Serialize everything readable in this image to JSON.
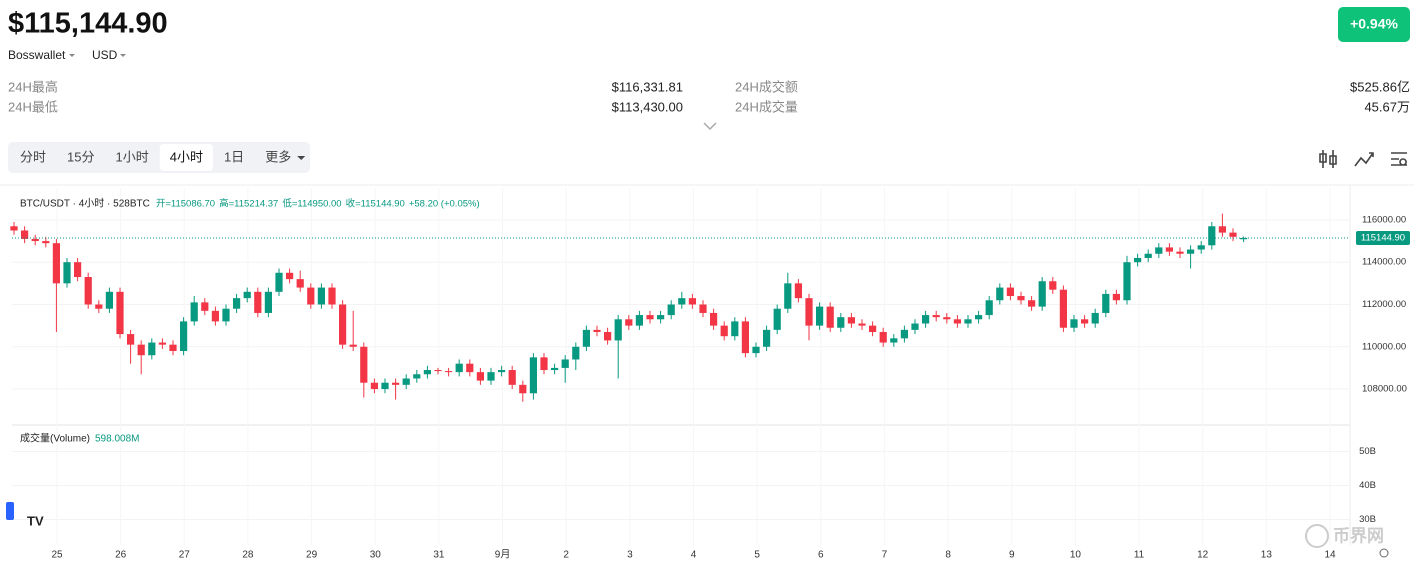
{
  "header": {
    "price": "$115,144.90",
    "exchange": "Bosswallet",
    "currency": "USD",
    "change": "+0.94%"
  },
  "stats": [
    {
      "label": "24H最高",
      "value": "$116,331.81"
    },
    {
      "label": "24H最低",
      "value": "$113,430.00"
    },
    {
      "label": "24H成交额",
      "value": "$525.86亿"
    },
    {
      "label": "24H成交量",
      "value": "45.67万"
    }
  ],
  "tabs": [
    "分时",
    "15分",
    "1小时",
    "4小时",
    "1日",
    "更多"
  ],
  "active_tab": 3,
  "chart_data": {
    "type": "candlestick",
    "legend": {
      "symbol": "BTC/USDT · 4小时 · 528BTC",
      "fields": [
        "开=115086.70",
        "高=115214.37",
        "低=114950.00",
        "收=115144.90",
        "+58.20 (+0.05%)"
      ]
    },
    "x_labels": [
      "25",
      "26",
      "27",
      "28",
      "29",
      "30",
      "31",
      "9月",
      "2",
      "3",
      "4",
      "5",
      "6",
      "7",
      "8",
      "9",
      "10",
      "11",
      "12",
      "13",
      "14"
    ],
    "up_color": "#089981",
    "down_color": "#f23645",
    "ylim": [
      106300,
      117510
    ],
    "yticks": [
      {
        "value": 116000,
        "label": "116000.00"
      },
      {
        "value": 114000,
        "label": "114000.00"
      },
      {
        "value": 112000,
        "label": "112000.00"
      },
      {
        "value": 110000,
        "label": "110000.00"
      },
      {
        "value": 108000,
        "label": "108000.00"
      }
    ],
    "last_price_label": "115144.90",
    "candles": [
      [
        115700,
        115900,
        115300,
        115500
      ],
      [
        115500,
        115700,
        114900,
        115100
      ],
      [
        115100,
        115300,
        114800,
        115000
      ],
      [
        115000,
        115200,
        114700,
        114900
      ],
      [
        114900,
        115100,
        110700,
        113000
      ],
      [
        113000,
        114200,
        112800,
        114000
      ],
      [
        114000,
        114200,
        113100,
        113300
      ],
      [
        113300,
        113500,
        111800,
        112000
      ],
      [
        112000,
        112200,
        111600,
        111800
      ],
      [
        111800,
        112800,
        111600,
        112600
      ],
      [
        112600,
        112800,
        110400,
        110600
      ],
      [
        110600,
        110800,
        109200,
        110100
      ],
      [
        110100,
        110300,
        108700,
        109600
      ],
      [
        109600,
        110400,
        109400,
        110200
      ],
      [
        110200,
        110400,
        109900,
        110100
      ],
      [
        110100,
        110300,
        109600,
        109800
      ],
      [
        109800,
        111400,
        109600,
        111200
      ],
      [
        111200,
        112400,
        111000,
        112100
      ],
      [
        112100,
        112300,
        111500,
        111700
      ],
      [
        111700,
        111900,
        111000,
        111200
      ],
      [
        111200,
        112000,
        111000,
        111800
      ],
      [
        111800,
        112500,
        111600,
        112300
      ],
      [
        112300,
        112800,
        112100,
        112600
      ],
      [
        112600,
        112800,
        111400,
        111600
      ],
      [
        111600,
        112800,
        111400,
        112600
      ],
      [
        112600,
        113700,
        112400,
        113500
      ],
      [
        113500,
        113700,
        113000,
        113200
      ],
      [
        113200,
        113600,
        112600,
        112800
      ],
      [
        112800,
        113000,
        111800,
        112000
      ],
      [
        112000,
        113000,
        111800,
        112800
      ],
      [
        112800,
        113000,
        111800,
        112000
      ],
      [
        112000,
        112200,
        109900,
        110100
      ],
      [
        110100,
        111700,
        109800,
        110000
      ],
      [
        110000,
        110200,
        107600,
        108300
      ],
      [
        108300,
        108500,
        107800,
        108000
      ],
      [
        108000,
        108500,
        107800,
        108300
      ],
      [
        108300,
        108500,
        107500,
        108200
      ],
      [
        108200,
        108700,
        108000,
        108500
      ],
      [
        108500,
        108900,
        108300,
        108700
      ],
      [
        108700,
        109100,
        108500,
        108900
      ],
      [
        108900,
        109000,
        108700,
        108850
      ],
      [
        108850,
        109000,
        108600,
        108800
      ],
      [
        108800,
        109400,
        108600,
        109200
      ],
      [
        109200,
        109400,
        108600,
        108800
      ],
      [
        108800,
        109000,
        108200,
        108400
      ],
      [
        108400,
        109000,
        108200,
        108800
      ],
      [
        108800,
        109100,
        108600,
        108900
      ],
      [
        108900,
        109100,
        108000,
        108200
      ],
      [
        108200,
        108400,
        107400,
        107800
      ],
      [
        107800,
        109700,
        107500,
        109500
      ],
      [
        109500,
        109700,
        108700,
        108900
      ],
      [
        108900,
        109200,
        108700,
        109000
      ],
      [
        109000,
        109600,
        108300,
        109400
      ],
      [
        109400,
        110200,
        108900,
        110000
      ],
      [
        110000,
        111000,
        109800,
        110800
      ],
      [
        110800,
        111000,
        110500,
        110700
      ],
      [
        110700,
        110900,
        110100,
        110300
      ],
      [
        110300,
        111500,
        108500,
        111300
      ],
      [
        111300,
        111500,
        110800,
        111000
      ],
      [
        111000,
        111700,
        110800,
        111500
      ],
      [
        111500,
        111700,
        111100,
        111300
      ],
      [
        111300,
        111700,
        111100,
        111500
      ],
      [
        111500,
        112200,
        111300,
        112000
      ],
      [
        112000,
        112600,
        111800,
        112300
      ],
      [
        112300,
        112500,
        111800,
        112000
      ],
      [
        112000,
        112200,
        111400,
        111600
      ],
      [
        111600,
        111800,
        110800,
        111000
      ],
      [
        111000,
        111200,
        110300,
        110500
      ],
      [
        110500,
        111400,
        110300,
        111200
      ],
      [
        111200,
        111400,
        109500,
        109700
      ],
      [
        109700,
        110200,
        109500,
        110000
      ],
      [
        110000,
        111000,
        109800,
        110800
      ],
      [
        110800,
        112000,
        110600,
        111800
      ],
      [
        111800,
        113500,
        111600,
        113000
      ],
      [
        113000,
        113200,
        112100,
        112300
      ],
      [
        112300,
        112500,
        110300,
        111000
      ],
      [
        111000,
        112100,
        110800,
        111900
      ],
      [
        111900,
        112100,
        110700,
        110900
      ],
      [
        110900,
        111600,
        110700,
        111400
      ],
      [
        111400,
        111600,
        110900,
        111100
      ],
      [
        111100,
        111300,
        110800,
        111000
      ],
      [
        111000,
        111200,
        110500,
        110700
      ],
      [
        110700,
        110900,
        110000,
        110200
      ],
      [
        110200,
        110600,
        110000,
        110400
      ],
      [
        110400,
        111000,
        110200,
        110800
      ],
      [
        110800,
        111300,
        110600,
        111100
      ],
      [
        111100,
        111700,
        110900,
        111500
      ],
      [
        111500,
        111700,
        111200,
        111400
      ],
      [
        111400,
        111600,
        111100,
        111300
      ],
      [
        111300,
        111500,
        110900,
        111100
      ],
      [
        111100,
        111500,
        110900,
        111300
      ],
      [
        111300,
        111700,
        111100,
        111500
      ],
      [
        111500,
        112400,
        111300,
        112200
      ],
      [
        112200,
        113000,
        112000,
        112800
      ],
      [
        112800,
        113000,
        112200,
        112400
      ],
      [
        112400,
        112600,
        112000,
        112200
      ],
      [
        112200,
        112400,
        111700,
        111900
      ],
      [
        111900,
        113300,
        111700,
        113100
      ],
      [
        113100,
        113300,
        112500,
        112700
      ],
      [
        112700,
        112900,
        110700,
        110900
      ],
      [
        110900,
        111500,
        110700,
        111300
      ],
      [
        111300,
        111500,
        110900,
        111100
      ],
      [
        111100,
        111800,
        110900,
        111600
      ],
      [
        111600,
        112700,
        111400,
        112500
      ],
      [
        112500,
        112700,
        112000,
        112200
      ],
      [
        112200,
        114300,
        112000,
        114000
      ],
      [
        114000,
        114400,
        113800,
        114200
      ],
      [
        114200,
        114600,
        114000,
        114400
      ],
      [
        114400,
        114900,
        114200,
        114700
      ],
      [
        114700,
        114900,
        114300,
        114500
      ],
      [
        114500,
        114700,
        114200,
        114400
      ],
      [
        114400,
        114800,
        113700,
        114600
      ],
      [
        114600,
        115000,
        114400,
        114800
      ],
      [
        114800,
        115900,
        114600,
        115700
      ],
      [
        115700,
        116300,
        115200,
        115400
      ],
      [
        115400,
        115600,
        115000,
        115200
      ],
      [
        115086.7,
        115214.37,
        114950,
        115144.9
      ]
    ],
    "volume": {
      "title": "成交量(Volume)",
      "value": "598.008M",
      "ylim": [
        22500000000,
        56900000000
      ],
      "yticks": [
        {
          "value": 50000000000,
          "label": "50B"
        },
        {
          "value": 40000000000,
          "label": "40B"
        },
        {
          "value": 30000000000,
          "label": "30B"
        }
      ]
    },
    "watermark": "币界网"
  }
}
